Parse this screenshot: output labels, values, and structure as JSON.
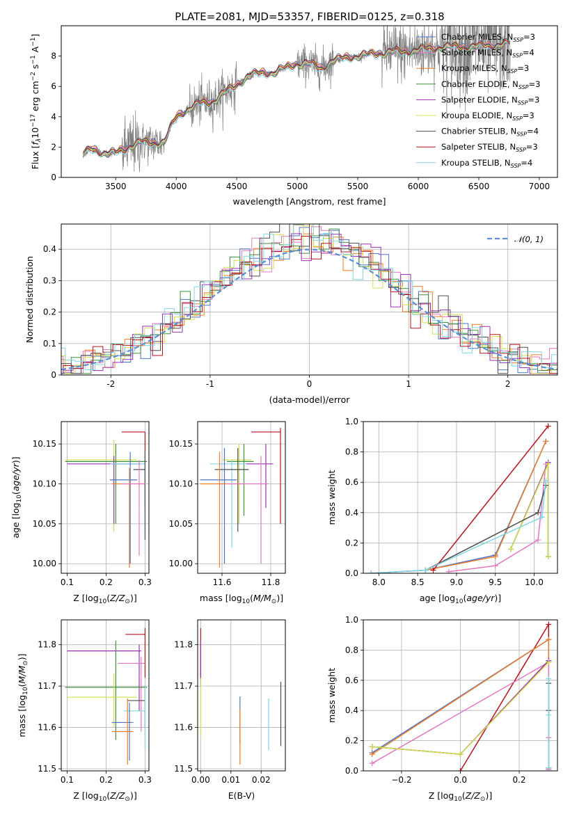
{
  "figure_title": "PLATE=2081, MJD=53357, FIBERID=0125, z=0.318",
  "colors": {
    "Chabrier MILES": "#4a74c9",
    "Salpeter MILES": "#e377c2",
    "Kroupa MILES": "#ef7d2a",
    "Chabrier ELODIE": "#3e8f3e",
    "Salpeter ELODIE": "#9b30b8",
    "Kroupa ELODIE": "#d2e04a",
    "Chabrier STELIB": "#4d4d4d",
    "Salpeter STELIB": "#b5121b",
    "Kroupa STELIB": "#7fd6e3",
    "data": "#7f7f7f",
    "gaussian": "#5b8ed6"
  },
  "chart_data": [
    {
      "type": "line",
      "panel": "spectrum",
      "xlabel": "wavelength [Angstrom, rest frame]",
      "ylabel": "Flux [f_λ 10^-17 erg cm^-2 s^-1 A^-1]",
      "xlim": [
        3050,
        7150
      ],
      "ylim": [
        0,
        10
      ],
      "xticks": [
        3500,
        4000,
        4500,
        5000,
        5500,
        6000,
        6500,
        7000
      ],
      "yticks": [
        0,
        2,
        4,
        6,
        8
      ],
      "legend_position": "top-right",
      "legend": [
        {
          "model": "Chabrier MILES",
          "nssp": "3"
        },
        {
          "model": "Salpeter MILES",
          "nssp": "4"
        },
        {
          "model": "Kroupa MILES",
          "nssp": "3"
        },
        {
          "model": "Chabrier ELODIE",
          "nssp": "3"
        },
        {
          "model": "Salpeter ELODIE",
          "nssp": "3"
        },
        {
          "model": "Kroupa ELODIE",
          "nssp": "3"
        },
        {
          "model": "Chabrier STELIB",
          "nssp": "4"
        },
        {
          "model": "Salpeter STELIB",
          "nssp": "3"
        },
        {
          "model": "Kroupa STELIB",
          "nssp": "4"
        }
      ],
      "continuum": [
        [
          3230,
          1.5
        ],
        [
          3300,
          1.9
        ],
        [
          3400,
          1.6
        ],
        [
          3500,
          1.6
        ],
        [
          3600,
          2.0
        ],
        [
          3700,
          2.3
        ],
        [
          3800,
          2.3
        ],
        [
          3900,
          2.3
        ],
        [
          3950,
          3.2
        ],
        [
          4000,
          4.0
        ],
        [
          4100,
          4.5
        ],
        [
          4200,
          4.9
        ],
        [
          4300,
          5.0
        ],
        [
          4400,
          5.6
        ],
        [
          4500,
          6.1
        ],
        [
          4600,
          6.7
        ],
        [
          4700,
          6.9
        ],
        [
          4800,
          6.9
        ],
        [
          4900,
          7.2
        ],
        [
          5000,
          7.5
        ],
        [
          5100,
          7.5
        ],
        [
          5200,
          7.2
        ],
        [
          5300,
          7.7
        ],
        [
          5400,
          7.9
        ],
        [
          5500,
          8.0
        ],
        [
          5600,
          8.1
        ],
        [
          5700,
          8.2
        ],
        [
          5800,
          8.3
        ],
        [
          5900,
          8.3
        ],
        [
          6000,
          8.4
        ],
        [
          6200,
          8.6
        ],
        [
          6400,
          8.6
        ],
        [
          6600,
          8.7
        ],
        [
          6760,
          8.8
        ]
      ]
    },
    {
      "type": "histogram",
      "panel": "residuals",
      "xlabel": "(data-model)/error",
      "ylabel": "Normed distribution",
      "xlim": [
        -2.5,
        2.5
      ],
      "ylim": [
        0,
        0.48
      ],
      "xticks": [
        -2,
        -1,
        0,
        1,
        2
      ],
      "yticks": [
        0.0,
        0.1,
        0.2,
        0.3,
        0.4
      ],
      "reference_curve": "𝒩(0, 1)",
      "legend_position": "top-right",
      "bin_width": 0.1
    },
    {
      "type": "scatter",
      "panel": "age-vs-Z",
      "xlabel": "Z [log10(Z/Z⊙)]",
      "ylabel": "age [log10(age/yr)]",
      "xlim": [
        0.085,
        0.31
      ],
      "ylim": [
        9.988,
        10.178
      ],
      "xticks": [
        0.1,
        0.2,
        0.3
      ],
      "xticklabels": [
        "0.1",
        "0.2",
        "0.3"
      ],
      "yticks": [
        10.0,
        10.05,
        10.1,
        10.15
      ],
      "yticklabels": [
        "10.00",
        "10.05",
        "10.10",
        "10.15"
      ],
      "points": [
        {
          "model": "Salpeter STELIB",
          "x": 0.3,
          "y": 10.165,
          "xerr": [
            0.24,
            0.3
          ],
          "yerr": [
            10.07,
            10.165
          ]
        },
        {
          "model": "Kroupa ELODIE",
          "x": 0.22,
          "y": 10.13,
          "xerr": [
            0.095,
            0.28
          ],
          "yerr": [
            10.04,
            10.155
          ]
        },
        {
          "model": "Chabrier ELODIE",
          "x": 0.225,
          "y": 10.128,
          "xerr": [
            0.095,
            0.305
          ],
          "yerr": [
            10.05,
            10.15
          ]
        },
        {
          "model": "Salpeter ELODIE",
          "x": 0.22,
          "y": 10.125,
          "xerr": [
            0.1,
            0.29
          ],
          "yerr": [
            10.05,
            10.135
          ]
        },
        {
          "model": "Kroupa STELIB",
          "x": 0.3,
          "y": 10.125,
          "xerr": [
            0.21,
            0.3
          ],
          "yerr": [
            10.06,
            10.14
          ]
        },
        {
          "model": "Chabrier STELIB",
          "x": 0.3,
          "y": 10.118,
          "xerr": [
            0.27,
            0.3
          ],
          "yerr": [
            10.03,
            10.14
          ]
        },
        {
          "model": "Chabrier MILES",
          "x": 0.262,
          "y": 10.105,
          "xerr": [
            0.21,
            0.28
          ],
          "yerr": [
            10.0,
            10.14
          ]
        },
        {
          "model": "Kroupa MILES",
          "x": 0.26,
          "y": 10.1,
          "xerr": [
            0.215,
            0.3
          ],
          "yerr": [
            9.995,
            10.12
          ]
        },
        {
          "model": "Salpeter MILES",
          "x": 0.285,
          "y": 10.1,
          "xerr": [
            0.24,
            0.3
          ],
          "yerr": [
            10.01,
            10.13
          ]
        }
      ]
    },
    {
      "type": "scatter",
      "panel": "age-vs-mass",
      "xlabel": "mass [log10(M/M⊙)]",
      "ylabel": "",
      "xlim": [
        11.5,
        11.86
      ],
      "ylim": [
        9.988,
        10.178
      ],
      "xticks": [
        11.6,
        11.8
      ],
      "xticklabels": [
        "11.6",
        "11.8"
      ],
      "yticks": [
        10.0,
        10.05,
        10.1,
        10.15
      ],
      "yticklabels": [
        "10.00",
        "10.05",
        "10.10",
        "10.15"
      ],
      "points": [
        {
          "model": "Salpeter STELIB",
          "x": 11.84,
          "y": 10.165,
          "xerr": [
            11.72,
            11.84
          ],
          "yerr": [
            10.05,
            10.17
          ]
        },
        {
          "model": "Salpeter ELODIE",
          "x": 11.78,
          "y": 10.125,
          "xerr": [
            11.7,
            11.81
          ],
          "yerr": [
            10.07,
            10.15
          ]
        },
        {
          "model": "Kroupa ELODIE",
          "x": 11.67,
          "y": 10.13,
          "xerr": [
            11.6,
            11.72
          ],
          "yerr": [
            10.05,
            10.15
          ]
        },
        {
          "model": "Chabrier ELODIE",
          "x": 11.69,
          "y": 10.128,
          "xerr": [
            11.62,
            11.73
          ],
          "yerr": [
            10.06,
            10.15
          ]
        },
        {
          "model": "Kroupa STELIB",
          "x": 11.64,
          "y": 10.125,
          "xerr": [
            11.55,
            11.7
          ],
          "yerr": [
            10.02,
            10.13
          ]
        },
        {
          "model": "Chabrier STELIB",
          "x": 11.665,
          "y": 10.118,
          "xerr": [
            11.57,
            11.71
          ],
          "yerr": [
            10.04,
            10.145
          ]
        },
        {
          "model": "Chabrier MILES",
          "x": 11.61,
          "y": 10.105,
          "xerr": [
            11.51,
            11.66
          ],
          "yerr": [
            10.0,
            10.145
          ]
        },
        {
          "model": "Kroupa MILES",
          "x": 11.59,
          "y": 10.1,
          "xerr": [
            11.51,
            11.68
          ],
          "yerr": [
            9.995,
            10.14
          ]
        },
        {
          "model": "Salpeter MILES",
          "x": 11.76,
          "y": 10.1,
          "xerr": [
            11.62,
            11.79
          ],
          "yerr": [
            10.0,
            10.135
          ]
        }
      ]
    },
    {
      "type": "line",
      "panel": "mass-weight-vs-age",
      "xlabel": "age [log10(age/yr)]",
      "ylabel": "mass weight",
      "xlim": [
        7.8,
        10.3
      ],
      "ylim": [
        0,
        1
      ],
      "xticks": [
        8.0,
        8.5,
        9.0,
        9.5,
        10.0
      ],
      "xticklabels": [
        "8.0",
        "8.5",
        "9.0",
        "9.5",
        "10.0"
      ],
      "yticks": [
        0,
        0.2,
        0.4,
        0.6,
        0.8,
        1.0
      ],
      "yticklabels": [
        "0.0",
        "0.2",
        "0.4",
        "0.6",
        "0.8",
        "1.0"
      ],
      "series": [
        {
          "model": "Chabrier MILES",
          "x": [
            8.6,
            9.5,
            10.15
          ],
          "y": [
            0.02,
            0.12,
            0.87
          ]
        },
        {
          "model": "Salpeter MILES",
          "x": [
            8.9,
            9.5,
            10.05,
            10.15
          ],
          "y": [
            0.01,
            0.05,
            0.22,
            0.72
          ]
        },
        {
          "model": "Kroupa MILES",
          "x": [
            8.6,
            9.5,
            10.15
          ],
          "y": [
            0.02,
            0.11,
            0.87
          ]
        },
        {
          "model": "Chabrier ELODIE",
          "x": [
            9.7,
            10.18,
            10.18
          ],
          "y": [
            0.16,
            0.73,
            0.11
          ]
        },
        {
          "model": "Salpeter ELODIE",
          "x": [
            9.7,
            10.18,
            10.18
          ],
          "y": [
            0.16,
            0.73,
            0.11
          ]
        },
        {
          "model": "Kroupa ELODIE",
          "x": [
            9.7,
            10.18,
            10.18
          ],
          "y": [
            0.16,
            0.72,
            0.11
          ]
        },
        {
          "model": "Chabrier STELIB",
          "x": [
            7.9,
            8.6,
            10.05,
            10.15
          ],
          "y": [
            0.0,
            0.02,
            0.4,
            0.58
          ]
        },
        {
          "model": "Salpeter STELIB",
          "x": [
            8.7,
            10.18
          ],
          "y": [
            0.02,
            0.97
          ]
        },
        {
          "model": "Kroupa STELIB",
          "x": [
            7.9,
            8.6,
            10.1,
            10.15
          ],
          "y": [
            0.0,
            0.02,
            0.37,
            0.61
          ]
        }
      ]
    },
    {
      "type": "scatter",
      "panel": "mass-vs-Z",
      "xlabel": "Z [log10(Z/Z⊙)]",
      "ylabel": "mass [log10(M/M⊙)]",
      "xlim": [
        0.085,
        0.31
      ],
      "ylim": [
        11.495,
        11.86
      ],
      "xticks": [
        0.1,
        0.2,
        0.3
      ],
      "xticklabels": [
        "0.1",
        "0.2",
        "0.3"
      ],
      "yticks": [
        11.5,
        11.6,
        11.7,
        11.8
      ],
      "yticklabels": [
        "11.5",
        "11.6",
        "11.7",
        "11.8"
      ],
      "points": [
        {
          "model": "Salpeter STELIB",
          "x": 0.3,
          "y": 11.825,
          "xerr": [
            0.25,
            0.3
          ],
          "yerr": [
            11.72,
            11.84
          ]
        },
        {
          "model": "Salpeter ELODIE",
          "x": 0.285,
          "y": 11.785,
          "xerr": [
            0.1,
            0.29
          ],
          "yerr": [
            11.64,
            11.8
          ]
        },
        {
          "model": "Salpeter MILES",
          "x": 0.29,
          "y": 11.755,
          "xerr": [
            0.23,
            0.3
          ],
          "yerr": [
            11.59,
            11.77
          ]
        },
        {
          "model": "Chabrier ELODIE",
          "x": 0.225,
          "y": 11.697,
          "xerr": [
            0.095,
            0.305
          ],
          "yerr": [
            11.57,
            11.81
          ]
        },
        {
          "model": "Kroupa ELODIE",
          "x": 0.22,
          "y": 11.673,
          "xerr": [
            0.1,
            0.28
          ],
          "yerr": [
            11.6,
            11.73
          ]
        },
        {
          "model": "Chabrier STELIB",
          "x": 0.3,
          "y": 11.665,
          "xerr": [
            0.255,
            0.3
          ],
          "yerr": [
            11.6,
            11.7
          ]
        },
        {
          "model": "Kroupa STELIB",
          "x": 0.3,
          "y": 11.64,
          "xerr": [
            0.245,
            0.3
          ],
          "yerr": [
            11.55,
            11.7
          ]
        },
        {
          "model": "Chabrier MILES",
          "x": 0.26,
          "y": 11.612,
          "xerr": [
            0.215,
            0.27
          ],
          "yerr": [
            11.52,
            11.66
          ]
        },
        {
          "model": "Kroupa MILES",
          "x": 0.255,
          "y": 11.59,
          "xerr": [
            0.215,
            0.27
          ],
          "yerr": [
            11.51,
            11.67
          ]
        }
      ]
    },
    {
      "type": "scatter",
      "panel": "mass-vs-EBV",
      "xlabel": "E(B-V)",
      "ylabel": "",
      "xlim": [
        -0.001,
        0.028
      ],
      "ylim": [
        11.495,
        11.86
      ],
      "xticks": [
        0.0,
        0.01,
        0.02
      ],
      "xticklabels": [
        "0.00",
        "0.01",
        "0.02"
      ],
      "yticks": [
        11.5,
        11.6,
        11.7,
        11.8
      ],
      "yticklabels": [
        "11.5",
        "11.6",
        "11.7",
        "11.8"
      ],
      "points": [
        {
          "model": "Salpeter STELIB",
          "x": 0.0,
          "y": 11.825,
          "yerr": [
            11.71,
            11.84
          ]
        },
        {
          "model": "Salpeter ELODIE",
          "x": 0.0,
          "y": 11.785,
          "yerr": [
            11.7,
            11.81
          ]
        },
        {
          "model": "Kroupa ELODIE",
          "x": 0.0,
          "y": 11.673,
          "yerr": [
            11.58,
            11.72
          ]
        },
        {
          "model": "Chabrier MILES",
          "x": 0.013,
          "y": 11.62,
          "yerr": [
            11.56,
            11.675
          ]
        },
        {
          "model": "Kroupa MILES",
          "x": 0.013,
          "y": 11.59,
          "yerr": [
            11.51,
            11.645
          ]
        },
        {
          "model": "Kroupa STELIB",
          "x": 0.0225,
          "y": 11.62,
          "yerr": [
            11.545,
            11.67
          ]
        },
        {
          "model": "Chabrier STELIB",
          "x": 0.0265,
          "y": 11.64,
          "yerr": [
            11.555,
            11.71
          ]
        }
      ]
    },
    {
      "type": "line",
      "panel": "mass-weight-vs-Z",
      "xlabel": "Z [log10(Z/Z⊙)]",
      "ylabel": "mass weight",
      "xlim": [
        -0.33,
        0.33
      ],
      "ylim": [
        0,
        1
      ],
      "xticks": [
        -0.2,
        0.0,
        0.2
      ],
      "xticklabels": [
        "−0.2",
        "0.0",
        "0.2"
      ],
      "yticks": [
        0,
        0.2,
        0.4,
        0.6,
        0.8,
        1.0
      ],
      "yticklabels": [
        "0.0",
        "0.2",
        "0.4",
        "0.6",
        "0.8",
        "1.0"
      ],
      "series": [
        {
          "model": "Salpeter STELIB",
          "x": [
            0.0,
            0.3,
            0.3
          ],
          "y": [
            0.0,
            0.97,
            0.01
          ]
        },
        {
          "model": "Chabrier MILES",
          "x": [
            -0.3,
            0.3,
            0.3
          ],
          "y": [
            0.12,
            0.87,
            0.01
          ]
        },
        {
          "model": "Kroupa MILES",
          "x": [
            -0.3,
            0.3,
            0.3
          ],
          "y": [
            0.11,
            0.87,
            0.01
          ]
        },
        {
          "model": "Salpeter MILES",
          "x": [
            -0.3,
            0.3,
            0.3,
            0.3
          ],
          "y": [
            0.05,
            0.72,
            0.22,
            0.01
          ]
        },
        {
          "model": "Chabrier ELODIE",
          "x": [
            -0.3,
            0.0,
            0.3
          ],
          "y": [
            0.16,
            0.11,
            0.73
          ]
        },
        {
          "model": "Salpeter ELODIE",
          "x": [
            -0.3,
            0.0,
            0.3
          ],
          "y": [
            0.16,
            0.11,
            0.73
          ]
        },
        {
          "model": "Kroupa ELODIE",
          "x": [
            -0.3,
            0.0,
            0.3
          ],
          "y": [
            0.16,
            0.11,
            0.72
          ]
        },
        {
          "model": "Chabrier STELIB",
          "x": [
            0.3,
            0.3,
            0.3
          ],
          "y": [
            0.02,
            0.58,
            0.4
          ]
        },
        {
          "model": "Kroupa STELIB",
          "x": [
            0.3,
            0.3,
            0.3
          ],
          "y": [
            0.02,
            0.61,
            0.37
          ]
        }
      ]
    }
  ]
}
